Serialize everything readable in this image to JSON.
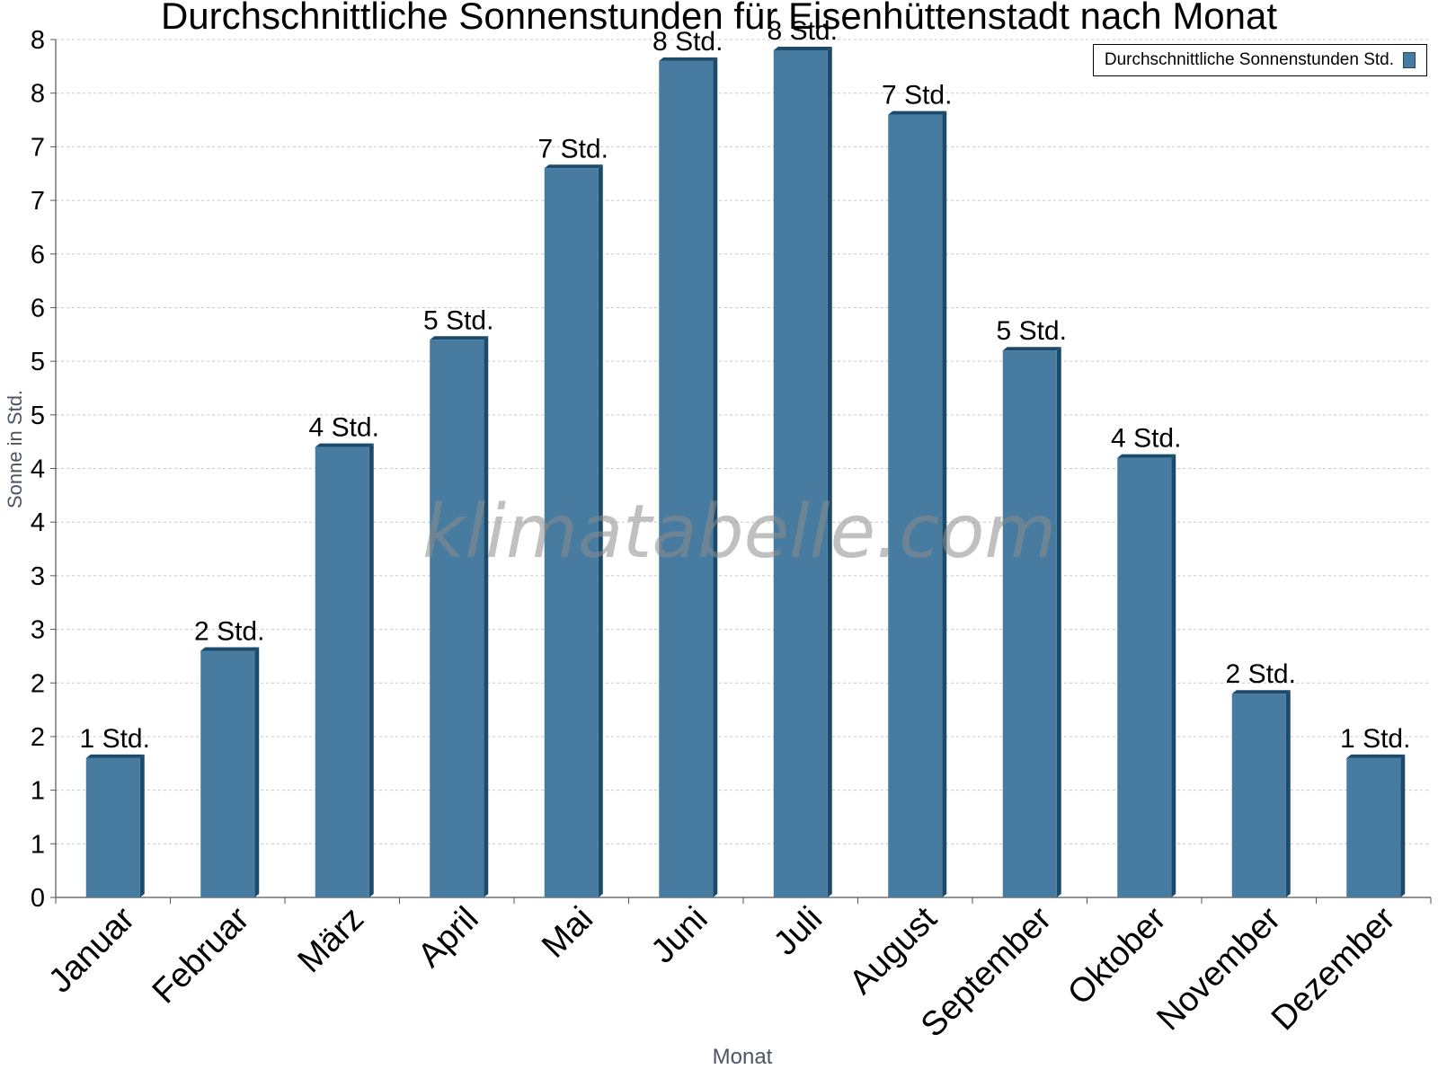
{
  "chart_data": {
    "type": "bar",
    "title": "Durchschnittliche Sonnenstunden für Eisenhüttenstadt nach Monat",
    "xlabel": "Monat",
    "ylabel": "Sonne in Std.",
    "legend_label": "Durchschnittliche Sonnenstunden Std.",
    "legend_position": "top-right",
    "watermark": "klimatabelle.com",
    "categories": [
      "Januar",
      "Februar",
      "März",
      "April",
      "Mai",
      "Juni",
      "Juli",
      "August",
      "September",
      "Oktober",
      "November",
      "Dezember"
    ],
    "values": [
      1.3,
      2.3,
      4.2,
      5.2,
      6.8,
      7.8,
      7.9,
      7.3,
      5.1,
      4.1,
      1.9,
      1.3
    ],
    "data_labels": [
      "1 Std.",
      "2 Std.",
      "4 Std.",
      "5 Std.",
      "7 Std.",
      "8 Std.",
      "8 Std.",
      "7 Std.",
      "5 Std.",
      "4 Std.",
      "2 Std.",
      "1 Std."
    ],
    "ylim": [
      0,
      8
    ],
    "y_ticks": [
      0,
      0.5,
      1,
      1.5,
      2,
      2.5,
      3,
      3.5,
      4,
      4.5,
      5,
      5.5,
      6,
      6.5,
      7,
      7.5,
      8
    ],
    "y_tick_labels": [
      "0",
      "1",
      "1",
      "2",
      "2",
      "3",
      "3",
      "4",
      "4",
      "5",
      "5",
      "6",
      "6",
      "7",
      "7",
      "8",
      "8"
    ],
    "grid": true,
    "colors": {
      "bar": "#477ba0",
      "bar_edge": "#1b4a6b"
    }
  }
}
